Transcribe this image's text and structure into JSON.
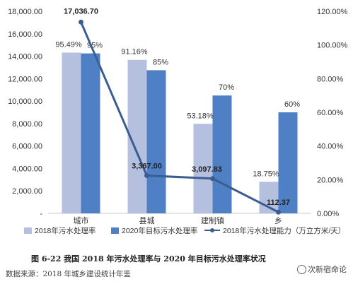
{
  "chart_data": {
    "type": "bar",
    "categories": [
      "城市",
      "县城",
      "建制镇",
      "乡"
    ],
    "series": [
      {
        "name": "2018年污水处理率",
        "kind": "bar",
        "axis": "right",
        "values": [
          95.49,
          91.16,
          53.18,
          18.75
        ],
        "labels": [
          "95.49%",
          "91.16%",
          "53.18%",
          "18.75%"
        ],
        "color": "#b4c0dd"
      },
      {
        "name": "2020年目标污水处理率",
        "kind": "bar",
        "axis": "right",
        "values": [
          95,
          85,
          70,
          60
        ],
        "labels": [
          "95%",
          "85%",
          "70%",
          "60%"
        ],
        "color": "#4f7fc4"
      },
      {
        "name": "2018年污水处理能力（万立方米/天）",
        "kind": "line",
        "axis": "left",
        "values": [
          17036.7,
          3367.0,
          3097.83,
          112.37
        ],
        "labels": [
          "17,036.70",
          "3,367.00",
          "3,097.83",
          "112.37"
        ],
        "color": "#3b5d92"
      }
    ],
    "left_axis": {
      "ylim": [
        0,
        18000
      ],
      "ticks": [
        "-",
        "2,000.00",
        "4,000.00",
        "6,000.00",
        "8,000.00",
        "10,000.00",
        "12,000.00",
        "14,000.00",
        "16,000.00",
        "18,000.00"
      ]
    },
    "right_axis": {
      "ylim": [
        0,
        120
      ],
      "ticks": [
        "0.00%",
        "20.00%",
        "40.00%",
        "60.00%",
        "80.00%",
        "100.00%",
        "120.00%"
      ]
    },
    "grid": false,
    "legend": "bottom",
    "title": "图 6-22 我国 2018 年污水处理率与 2020 年目标污水处理率状况",
    "source": "数据来源：2018 年城乡建设统计年鉴"
  },
  "watermark": "次新宿命论"
}
